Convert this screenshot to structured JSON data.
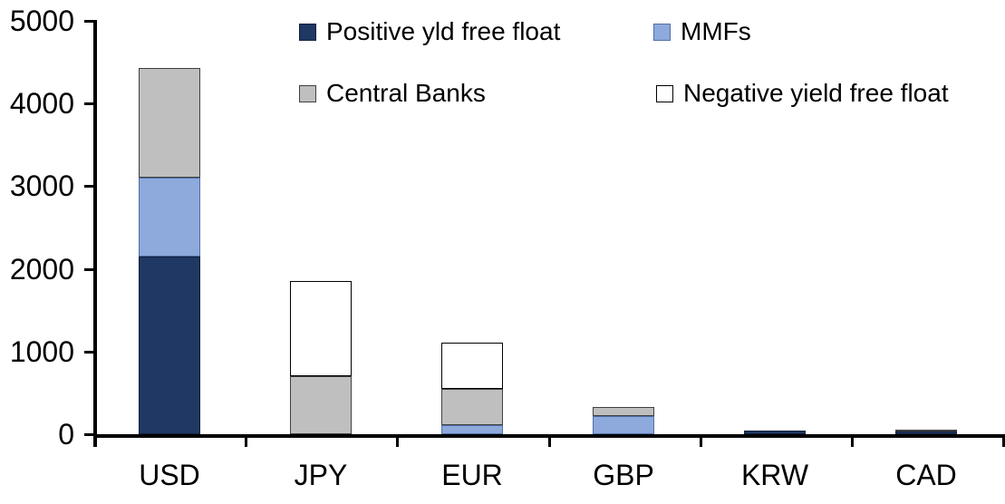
{
  "chart_data": {
    "type": "bar",
    "stacked": true,
    "title": "",
    "xlabel": "",
    "ylabel": "",
    "categories": [
      "USD",
      "JPY",
      "EUR",
      "GBP",
      "KRW",
      "CAD"
    ],
    "series": [
      {
        "name": "Positive yld free float",
        "color": "#1F3864",
        "border_color": "#10203B",
        "values": [
          2150,
          0,
          0,
          0,
          40,
          35
        ]
      },
      {
        "name": "MMFs",
        "color": "#8EA9DB",
        "border_color": "#4F6FA8",
        "values": [
          950,
          0,
          110,
          220,
          0,
          0
        ]
      },
      {
        "name": "Central Banks",
        "color": "#BFBFBF",
        "border_color": "#404040",
        "values": [
          1330,
          700,
          440,
          110,
          0,
          20
        ]
      },
      {
        "name": "Negative yield free float",
        "color": "#FFFFFF",
        "border_color": "#000000",
        "values": [
          0,
          1150,
          560,
          0,
          0,
          0
        ]
      }
    ],
    "totals": {
      "USD": 4430,
      "JPY": 1850,
      "EUR": 1110,
      "GBP": 330,
      "KRW": 40,
      "CAD": 55
    },
    "ylim": [
      0,
      5000
    ],
    "yticks": [
      0,
      1000,
      2000,
      3000,
      4000,
      5000
    ],
    "grid": false,
    "legend_position": "top-inside-two-rows"
  },
  "colors": {
    "background": "#FFFFFF",
    "axis": "#000000",
    "text": "#000000"
  }
}
